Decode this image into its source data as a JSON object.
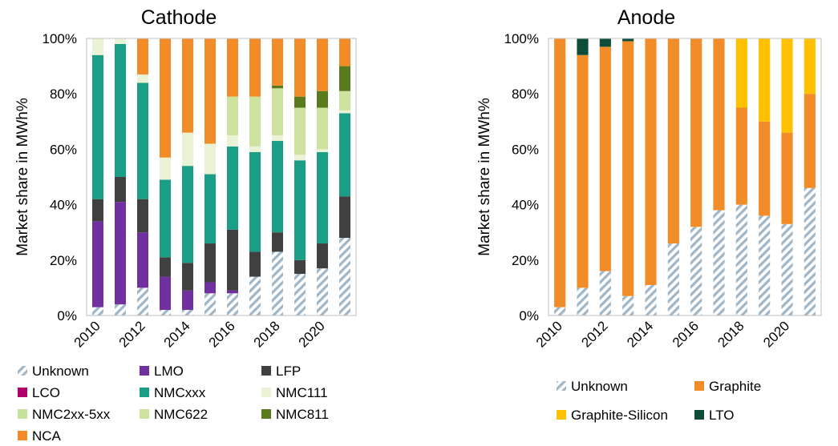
{
  "chart_data": [
    {
      "type": "bar",
      "stacked": true,
      "title": "Cathode",
      "ylabel": "Market share in MWh%",
      "xlabel": "",
      "ylim": [
        0,
        100
      ],
      "y_ticks": [
        "0%",
        "20%",
        "40%",
        "60%",
        "80%",
        "100%"
      ],
      "categories": [
        2010,
        2011,
        2012,
        2013,
        2014,
        2015,
        2016,
        2017,
        2018,
        2019,
        2020,
        2021
      ],
      "x_tick_labels": [
        "2010",
        "2012",
        "2014",
        "2016",
        "2018",
        "2020"
      ],
      "series": [
        {
          "name": "Unknown",
          "color": "#9fb5c8",
          "pattern": "hatch",
          "values": [
            3,
            4,
            10,
            2,
            2,
            8,
            8,
            14,
            23,
            15,
            17,
            28
          ]
        },
        {
          "name": "LMO",
          "color": "#7030a0",
          "values": [
            31,
            37,
            20,
            12,
            7,
            4,
            1,
            0,
            0,
            0,
            0,
            0
          ]
        },
        {
          "name": "LFP",
          "color": "#404040",
          "values": [
            8,
            9,
            12,
            7,
            10,
            14,
            22,
            9,
            7,
            5,
            9,
            15
          ]
        },
        {
          "name": "LCO",
          "color": "#b0006a",
          "values": [
            0,
            0,
            0,
            0,
            0,
            0,
            0,
            0,
            0,
            0,
            0,
            0
          ]
        },
        {
          "name": "NMCxxx",
          "color": "#1a9e85",
          "values": [
            52,
            48,
            42,
            28,
            35,
            25,
            30,
            36,
            33,
            36,
            33,
            30
          ]
        },
        {
          "name": "NMC111",
          "color": "#eaf3d6",
          "values": [
            6,
            2,
            3,
            8,
            12,
            11,
            4,
            2,
            2,
            2,
            1,
            1
          ]
        },
        {
          "name": "NMC2xx-5xx",
          "color": "#c7e29a",
          "values": [
            0,
            0,
            0,
            0,
            0,
            0,
            0,
            0,
            0,
            0,
            0,
            0
          ]
        },
        {
          "name": "NMC622",
          "color": "#cfe3a0",
          "values": [
            0,
            0,
            0,
            0,
            0,
            0,
            14,
            18,
            17,
            17,
            15,
            7
          ]
        },
        {
          "name": "NMC811",
          "color": "#5a7a1e",
          "values": [
            0,
            0,
            0,
            0,
            0,
            0,
            0,
            0,
            1,
            4,
            6,
            9
          ]
        },
        {
          "name": "NCA",
          "color": "#f28c28",
          "values": [
            0,
            0,
            13,
            43,
            34,
            38,
            21,
            21,
            17,
            21,
            19,
            10
          ]
        }
      ],
      "legend_placement": "bottom",
      "grid": false
    },
    {
      "type": "bar",
      "stacked": true,
      "title": "Anode",
      "ylabel": "Market share in MWh%",
      "xlabel": "",
      "ylim": [
        0,
        100
      ],
      "y_ticks": [
        "0%",
        "20%",
        "40%",
        "60%",
        "80%",
        "100%"
      ],
      "categories": [
        2010,
        2011,
        2012,
        2013,
        2014,
        2015,
        2016,
        2017,
        2018,
        2019,
        2020,
        2021
      ],
      "x_tick_labels": [
        "2010",
        "2012",
        "2014",
        "2016",
        "2018",
        "2020"
      ],
      "series": [
        {
          "name": "Unknown",
          "color": "#9fb5c8",
          "pattern": "hatch",
          "values": [
            3,
            10,
            16,
            7,
            11,
            26,
            32,
            38,
            40,
            36,
            33,
            46
          ]
        },
        {
          "name": "Graphite",
          "color": "#f28c28",
          "values": [
            97,
            84,
            81,
            92,
            89,
            74,
            68,
            62,
            35,
            34,
            33,
            34
          ]
        },
        {
          "name": "Graphite-Silicon",
          "color": "#ffc000",
          "values": [
            0,
            0,
            0,
            0,
            0,
            0,
            0,
            0,
            25,
            30,
            34,
            20
          ]
        },
        {
          "name": "LTO",
          "color": "#0d4d3a",
          "values": [
            0,
            6,
            3,
            1,
            0,
            0,
            0,
            0,
            0,
            0,
            0,
            0
          ]
        }
      ],
      "legend_placement": "bottom",
      "grid": false
    }
  ]
}
